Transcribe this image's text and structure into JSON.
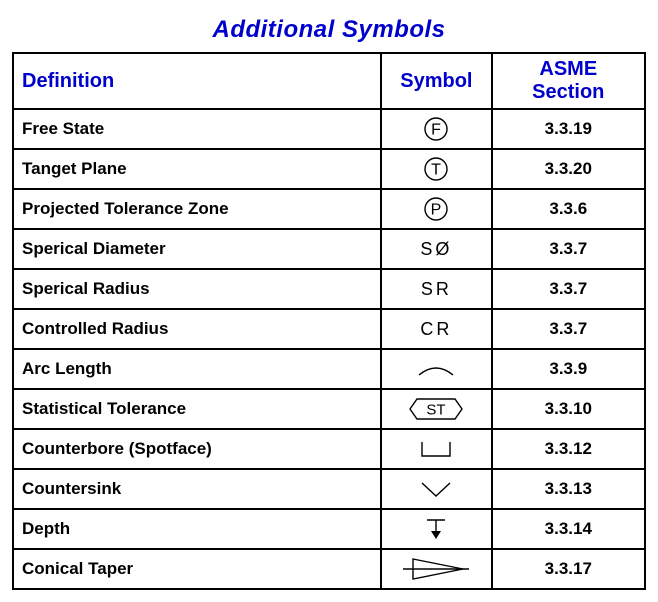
{
  "title": "Additional Symbols",
  "title_color": "#0000cc",
  "header_color": "#0000cc",
  "border_color": "#000000",
  "background": "#ffffff",
  "columns": {
    "definition": "Definition",
    "symbol": "Symbol",
    "asme": "ASME Section"
  },
  "rows": [
    {
      "definition": "Free State",
      "symbol_type": "circled-letter",
      "symbol_text": "F",
      "asme": "3.3.19"
    },
    {
      "definition": "Tanget Plane",
      "symbol_type": "circled-letter",
      "symbol_text": "T",
      "asme": "3.3.20"
    },
    {
      "definition": "Projected Tolerance Zone",
      "symbol_type": "circled-letter",
      "symbol_text": "P",
      "asme": "3.3.6"
    },
    {
      "definition": "Sperical Diameter",
      "symbol_type": "text",
      "symbol_text": "SØ",
      "asme": "3.3.7"
    },
    {
      "definition": "Sperical Radius",
      "symbol_type": "text",
      "symbol_text": "SR",
      "asme": "3.3.7"
    },
    {
      "definition": "Controlled Radius",
      "symbol_type": "text",
      "symbol_text": "CR",
      "asme": "3.3.7"
    },
    {
      "definition": "Arc Length",
      "symbol_type": "arc",
      "symbol_text": "",
      "asme": "3.3.9"
    },
    {
      "definition": "Statistical Tolerance",
      "symbol_type": "hex-st",
      "symbol_text": "ST",
      "asme": "3.3.10"
    },
    {
      "definition": "Counterbore (Spotface)",
      "symbol_type": "counterbore",
      "symbol_text": "",
      "asme": "3.3.12"
    },
    {
      "definition": "Countersink",
      "symbol_type": "countersink",
      "symbol_text": "",
      "asme": "3.3.13"
    },
    {
      "definition": "Depth",
      "symbol_type": "depth",
      "symbol_text": "",
      "asme": "3.3.14"
    },
    {
      "definition": "Conical Taper",
      "symbol_type": "taper",
      "symbol_text": "",
      "asme": "3.3.17"
    }
  ],
  "symbol_style": {
    "stroke": "#000000",
    "stroke_width": 1.4,
    "text_font": "Arial",
    "text_size": 18,
    "text_letter_spacing": 3
  }
}
